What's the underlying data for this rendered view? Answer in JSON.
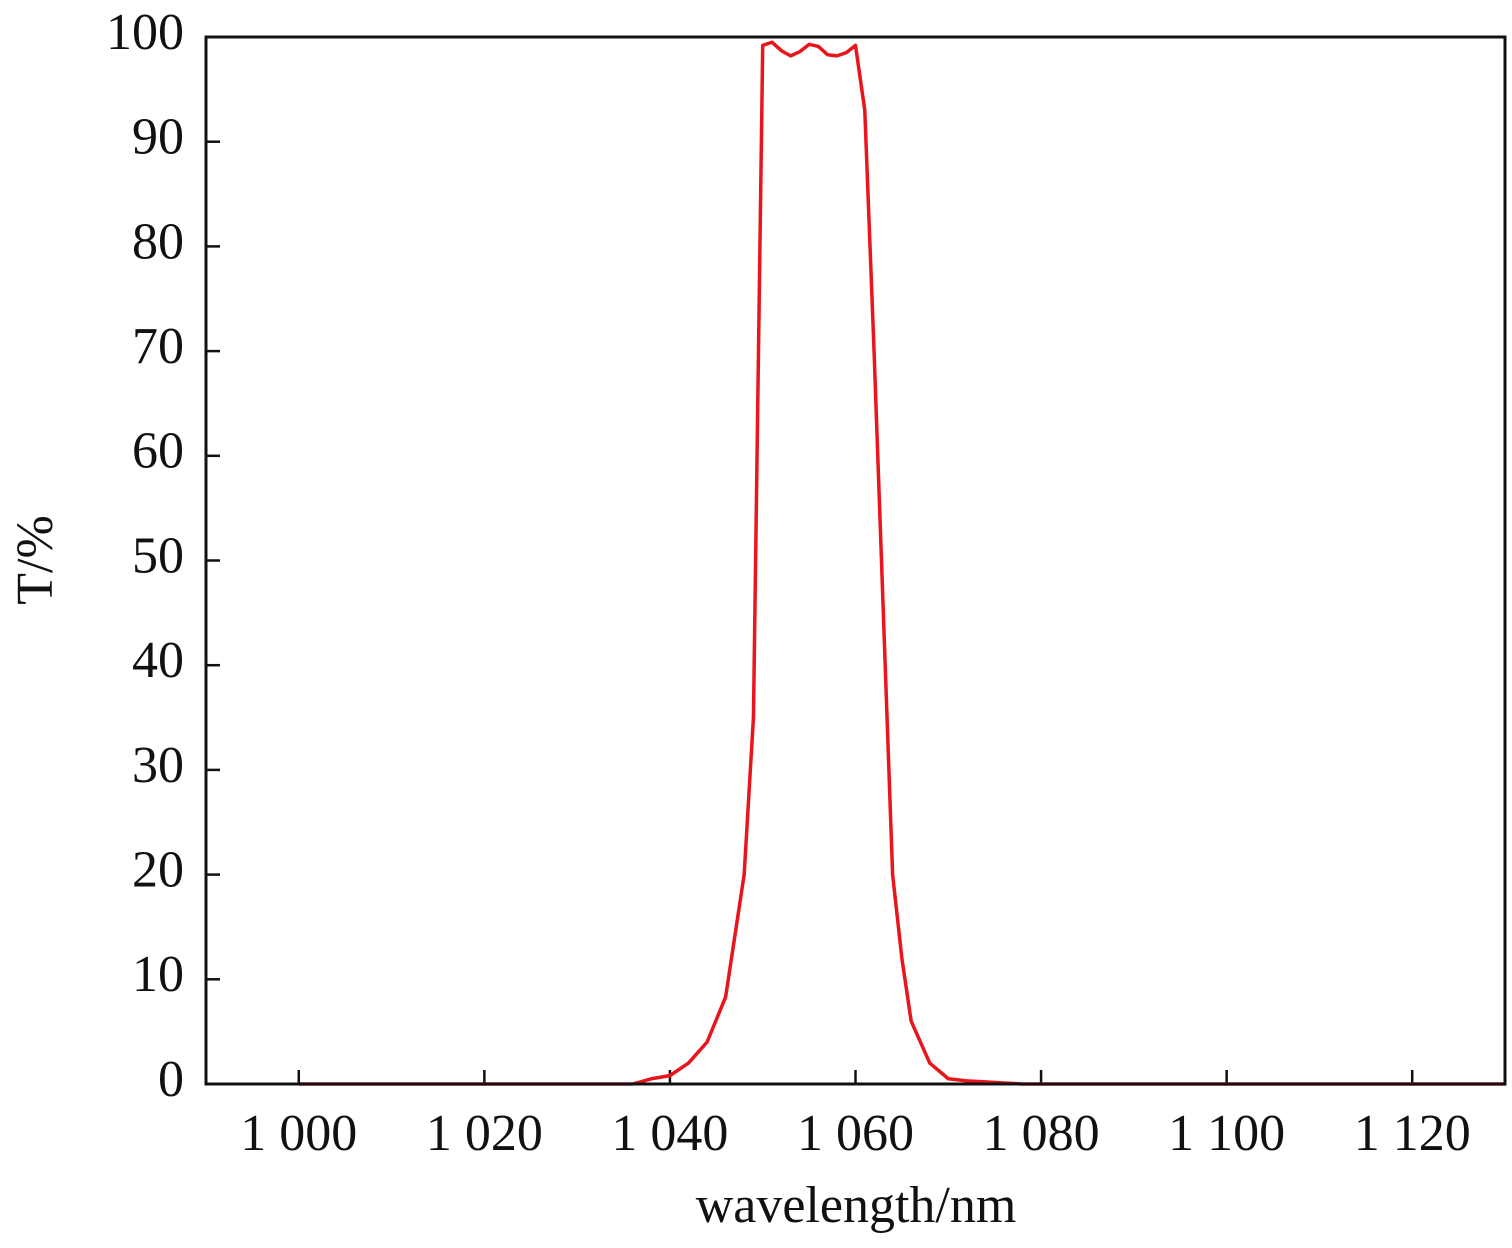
{
  "chart_data": {
    "type": "line",
    "x_label": "wavelength/nm",
    "y_label": "T/%",
    "x": [
      1000,
      1010,
      1020,
      1030,
      1036,
      1038,
      1040,
      1042,
      1044,
      1046,
      1048,
      1049,
      1050,
      1051,
      1052,
      1053,
      1054,
      1055,
      1056,
      1057,
      1058,
      1059,
      1060,
      1061,
      1062,
      1063,
      1064,
      1065,
      1066,
      1068,
      1070,
      1072,
      1074,
      1076,
      1078,
      1090,
      1100,
      1110,
      1120,
      1130
    ],
    "values": [
      0,
      0,
      0,
      0,
      0,
      0.5,
      0.8,
      2,
      4,
      8.3,
      20,
      35,
      99.2,
      99.5,
      98.7,
      98.2,
      98.6,
      99.3,
      99.1,
      98.3,
      98.2,
      98.5,
      99.2,
      93,
      70,
      45,
      20,
      12,
      6,
      2,
      0.5,
      0.3,
      0.2,
      0.1,
      0,
      0,
      0,
      0,
      0,
      0
    ],
    "color": "#e8151b",
    "xlim": [
      990,
      1130
    ],
    "ylim": [
      0,
      100
    ],
    "xticks": [
      {
        "value": 1000,
        "label": "1 000"
      },
      {
        "value": 1020,
        "label": "1 020"
      },
      {
        "value": 1040,
        "label": "1 040"
      },
      {
        "value": 1060,
        "label": "1 060"
      },
      {
        "value": 1080,
        "label": "1 080"
      },
      {
        "value": 1100,
        "label": "1 100"
      },
      {
        "value": 1120,
        "label": "1 120"
      }
    ],
    "yticks": [
      0,
      10,
      20,
      30,
      40,
      50,
      60,
      70,
      80,
      90,
      100
    ],
    "grid": false
  }
}
